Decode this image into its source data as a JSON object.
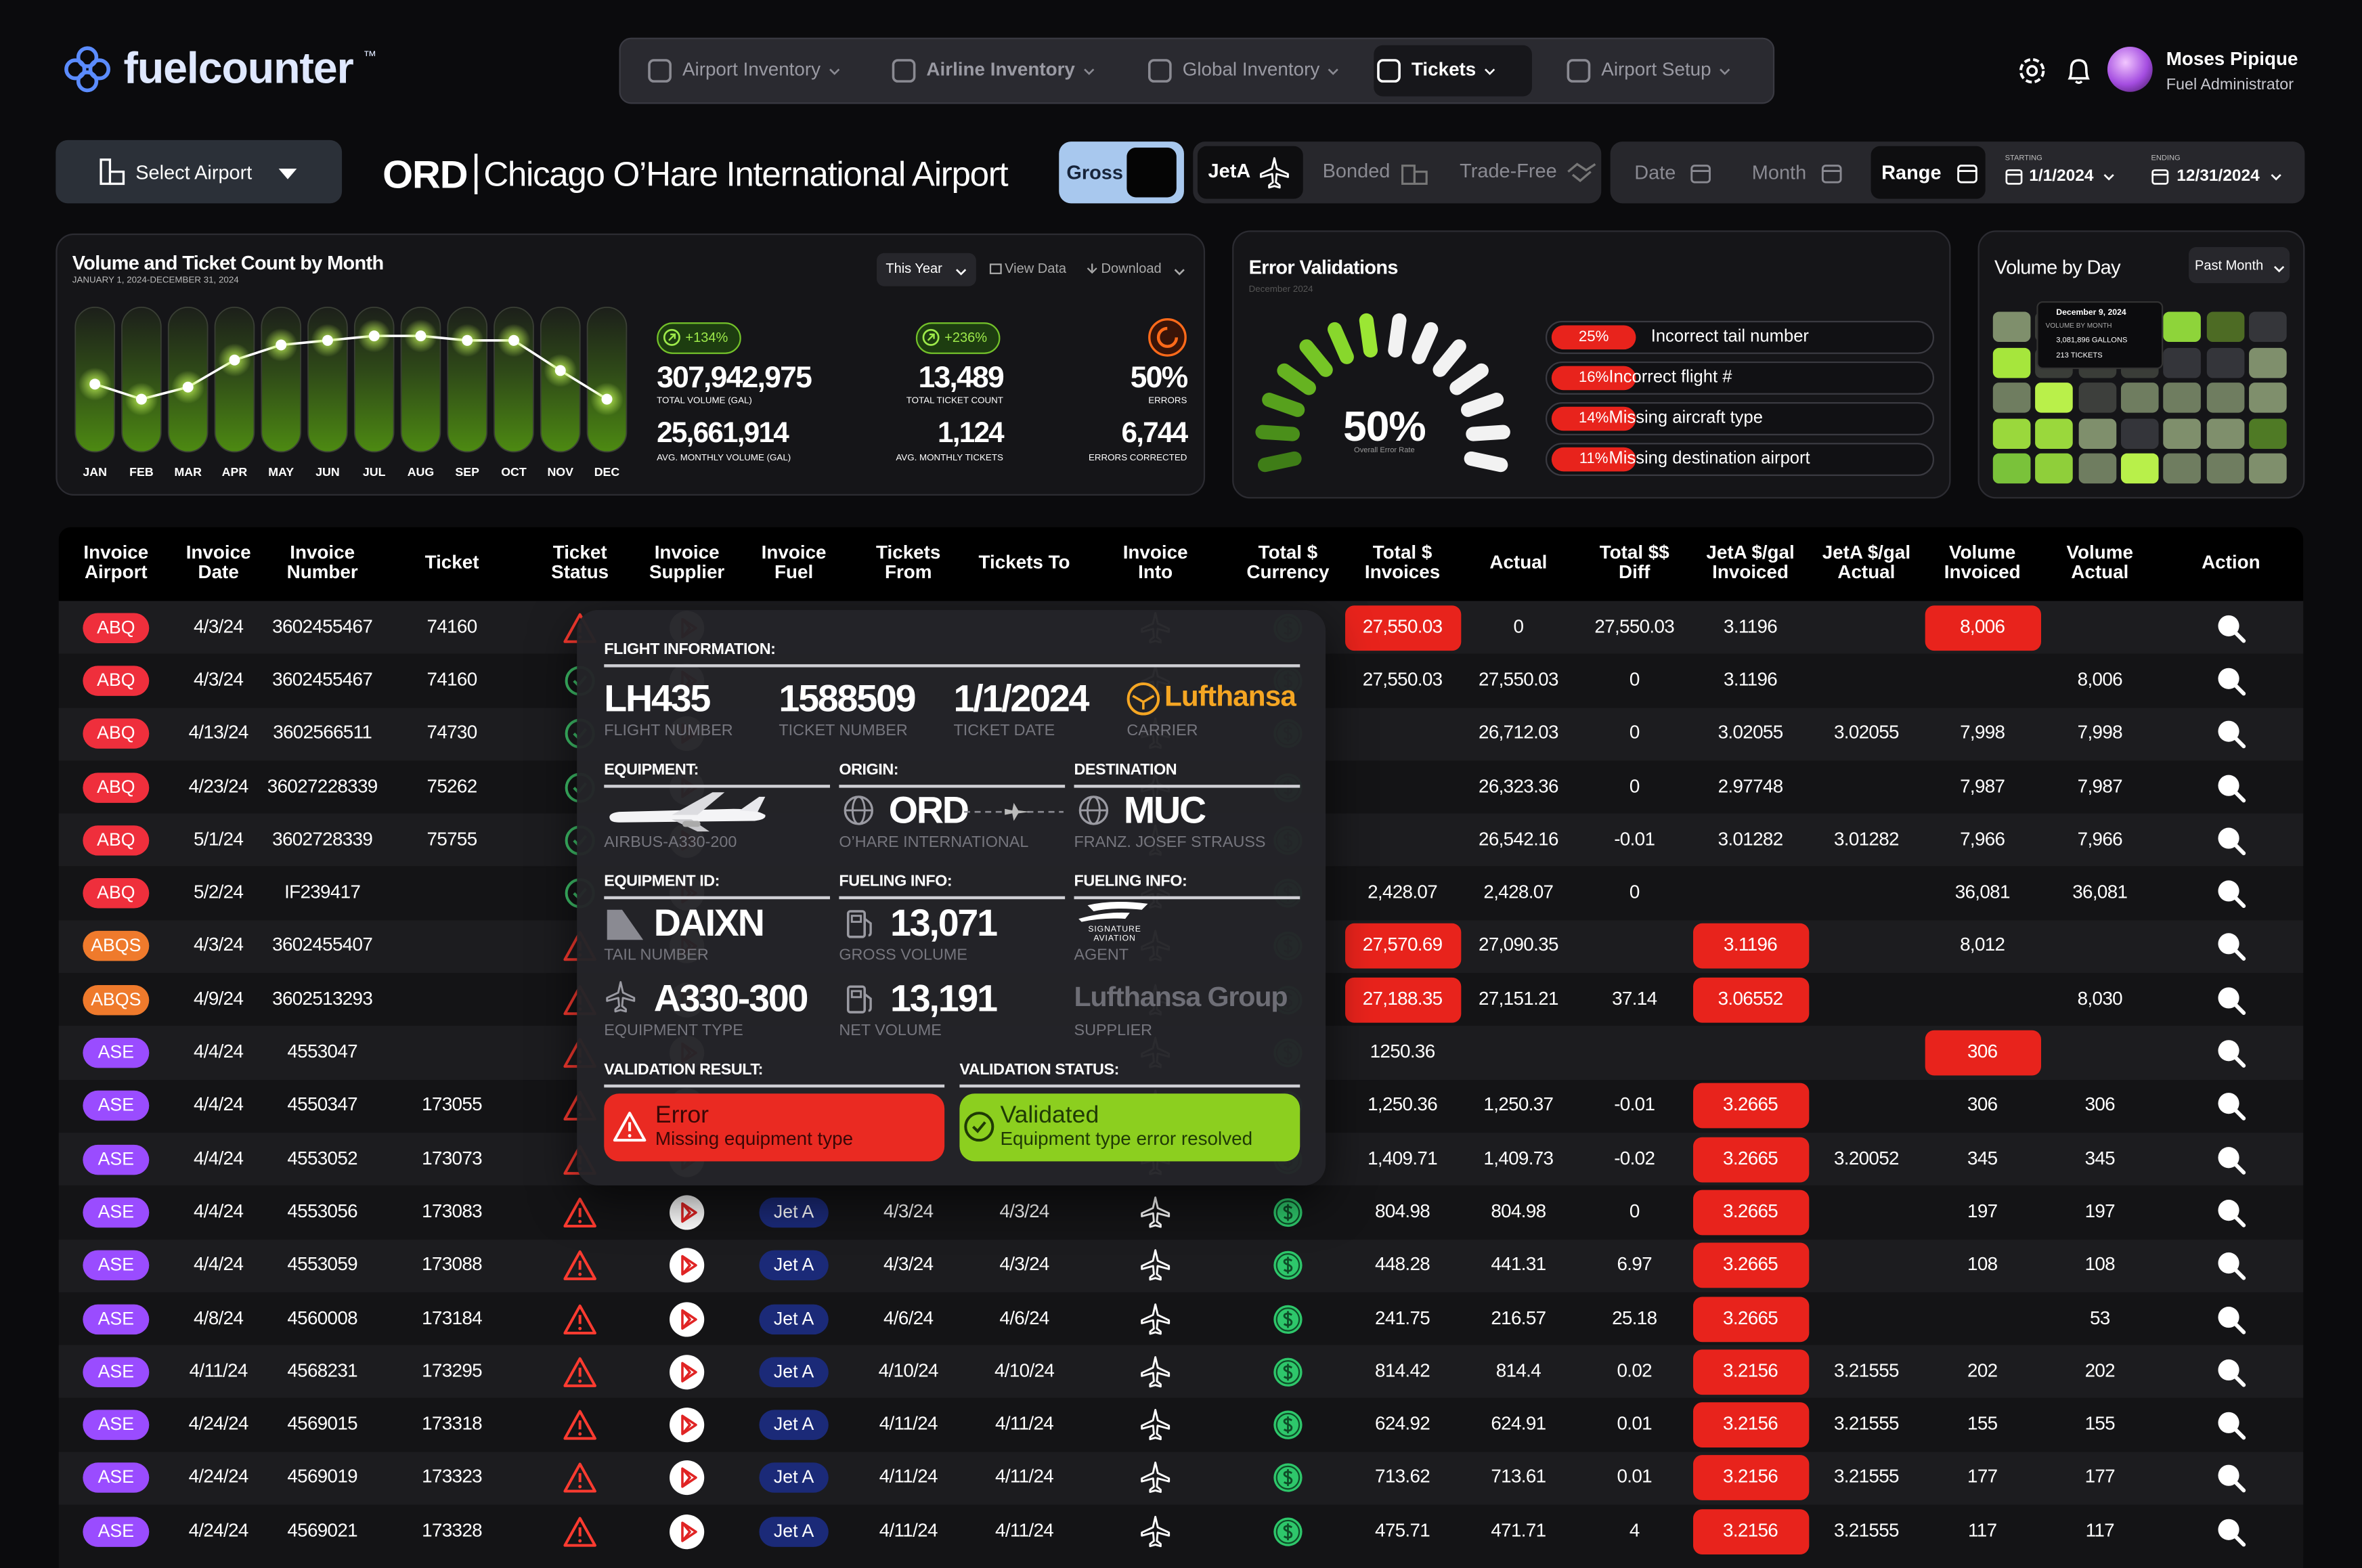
{
  "header": {
    "logo": "fuelcounter",
    "trademark": "™",
    "nav": [
      "Airport Inventory",
      "Airline Inventory",
      "Global Inventory",
      "Tickets",
      "Airport Setup"
    ],
    "user_name": "Moses Pipique",
    "user_role": "Fuel Administrator"
  },
  "toolbar": {
    "select_airport": "Select Airport",
    "airport_code": "ORD",
    "airport_name": "Chicago O’Hare International Airport",
    "gross": "Gross",
    "fuel_types": [
      "JetA",
      "Bonded",
      "Trade-Free"
    ],
    "date_modes": [
      "Date",
      "Month",
      "Range"
    ],
    "starting_label": "STARTING",
    "start_date": "1/1/2024",
    "ending_label": "ENDING",
    "end_date": "12/31/2024"
  },
  "volume_panel": {
    "title": "Volume and Ticket Count by Month",
    "subtitle": "JANUARY 1, 2024-DECEMBER 31, 2024",
    "period": "This Year",
    "view_data": "View Data",
    "download": "Download",
    "stats": [
      {
        "change": "+134%",
        "value": "307,942,975",
        "label": "TOTAL VOLUME (GAL)",
        "sub_value": "25,661,914",
        "sub_label": "AVG. MONTHLY VOLUME (GAL)"
      },
      {
        "change": "+236%",
        "value": "13,489",
        "label": "TOTAL TICKET COUNT",
        "sub_value": "1,124",
        "sub_label": "AVG. MONTHLY TICKETS"
      },
      {
        "value": "50%",
        "label": "ERRORS",
        "sub_value": "6,744",
        "sub_label": "ERRORS CORRECTED"
      }
    ]
  },
  "volume_chart": {
    "type": "line",
    "categories": [
      "JAN",
      "FEB",
      "MAR",
      "APR",
      "MAY",
      "JUN",
      "JUL",
      "AUG",
      "SEP",
      "OCT",
      "NOV",
      "DEC"
    ],
    "values": [
      45,
      35,
      43,
      61,
      71,
      74,
      77,
      77,
      74,
      74,
      54,
      35
    ],
    "ylim": [
      0,
      100
    ],
    "color": "#ffffff"
  },
  "error_panel": {
    "title": "Error Validations",
    "subtitle": "December 2024",
    "rate": "50%",
    "rate_label": "Overall Error Rate",
    "items": [
      {
        "percent": "25%",
        "label": "Incorrect tail number"
      },
      {
        "percent": "16%",
        "label": "Incorrect flight #"
      },
      {
        "percent": "14%",
        "label": "Missing aircraft type"
      },
      {
        "percent": "11%",
        "label": "Missing destination airport"
      }
    ]
  },
  "day_panel": {
    "title": "Volume by Day",
    "period": "Past Month",
    "tooltip": {
      "date": "December 9, 2024",
      "title": "VOLUME BY MONTH",
      "volume": "3,081,896 GALLONS",
      "tickets": "213 TICKETS"
    },
    "cells": [
      "#7f8f6c",
      "#3a3d38",
      "#3a3d38",
      "#3a3d38",
      "#8ed43a",
      "#4d6b24",
      "#35363a",
      "#a6e63c",
      "#3a3d38",
      "#3a3d38",
      "#3a3d38",
      "#34353a",
      "#34353a",
      "#7f8f6c",
      "#6f7d60",
      "#b9f04a",
      "#3d3f3c",
      "#6f7d60",
      "#6f7d60",
      "#6f7d60",
      "#7f8f6c",
      "#9ad83c",
      "#9ad83c",
      "#7f8f6c",
      "#34353a",
      "#7f8f6c",
      "#7f8f6c",
      "#4f7a25",
      "#7ac23a",
      "#8fcf3a",
      "#6f7d60",
      "#b8f04a",
      "#6f7d60",
      "#6f7d60",
      "#7f8f6c"
    ]
  },
  "table": {
    "headers": [
      "Invoice Airport",
      "Invoice Date",
      "Invoice Number",
      "Ticket",
      "Ticket Status",
      "Invoice Supplier",
      "Invoice Fuel",
      "Tickets From",
      "Tickets To",
      "Invoice Into",
      "Total $ Currency",
      "Total $ Invoices",
      "Actual",
      "Total $$ Diff",
      "JetA $/gal Invoiced",
      "JetA $/gal Actual",
      "Volume Invoiced",
      "Volume Actual",
      "Action"
    ],
    "airport_colors": {
      "ABQ": "#ef2f3c",
      "ABQS": "#ef7a2c",
      "ASE": "#9a4cff"
    },
    "rows": [
      {
        "airport": "ABQ",
        "date": "4/3/24",
        "invoice": "3602455467",
        "ticket": "74160",
        "ok": false,
        "total": "27,550.03",
        "actual": "0",
        "diff": "27,550.03",
        "jeta_invoiced": "3.1196",
        "volume_invoiced": "8,006",
        "red": [
          "total",
          "volume_invoiced"
        ]
      },
      {
        "airport": "ABQ",
        "date": "4/3/24",
        "invoice": "3602455467",
        "ticket": "74160",
        "ok": true,
        "total": "27,550.03",
        "actual": "27,550.03",
        "diff": "0",
        "jeta_invoiced": "3.1196",
        "volume_actual": "8,006",
        "red": []
      },
      {
        "airport": "ABQ",
        "date": "4/13/24",
        "invoice": "3602566511",
        "ticket": "74730",
        "ok": true,
        "actual": "26,712.03",
        "diff": "0",
        "jeta_invoiced": "3.02055",
        "jeta_actual": "3.02055",
        "volume_invoiced": "7,998",
        "volume_actual": "7,998",
        "red": []
      },
      {
        "airport": "ABQ",
        "date": "4/23/24",
        "invoice": "36027228339",
        "ticket": "75262",
        "ok": true,
        "actual": "26,323.36",
        "diff": "0",
        "jeta_invoiced": "2.97748",
        "volume_invoiced": "7,987",
        "volume_actual": "7,987",
        "red": []
      },
      {
        "airport": "ABQ",
        "date": "5/1/24",
        "invoice": "3602728339",
        "ticket": "75755",
        "ok": true,
        "actual": "26,542.16",
        "diff": "-0.01",
        "jeta_invoiced": "3.01282",
        "jeta_actual": "3.01282",
        "volume_invoiced": "7,966",
        "volume_actual": "7,966",
        "red": []
      },
      {
        "airport": "ABQ",
        "date": "5/2/24",
        "invoice": "IF239417",
        "ok": true,
        "total": "2,428.07",
        "actual": "2,428.07",
        "diff": "0",
        "volume_invoiced": "36,081",
        "volume_actual": "36,081",
        "red": []
      },
      {
        "airport": "ABQS",
        "date": "4/3/24",
        "invoice": "3602455407",
        "ok": false,
        "total": "27,570.69",
        "actual": "27,090.35",
        "jeta_invoiced": "3.1196",
        "volume_invoiced": "8,012",
        "red": [
          "total",
          "jeta_invoiced"
        ]
      },
      {
        "airport": "ABQS",
        "date": "4/9/24",
        "invoice": "3602513293",
        "ok": false,
        "total": "27,188.35",
        "actual": "27,151.21",
        "diff": "37.14",
        "jeta_invoiced": "3.06552",
        "volume_actual": "8,030",
        "red": [
          "total",
          "jeta_invoiced"
        ]
      },
      {
        "airport": "ASE",
        "date": "4/4/24",
        "invoice": "4553047",
        "ok": false,
        "total": "1250.36",
        "volume_invoiced": "306",
        "red": [
          "volume_invoiced"
        ]
      },
      {
        "airport": "ASE",
        "date": "4/4/24",
        "invoice": "4550347",
        "ticket": "173055",
        "ok": false,
        "total": "1,250.36",
        "actual": "1,250.37",
        "diff": "-0.01",
        "jeta_invoiced": "3.2665",
        "volume_invoiced": "306",
        "volume_actual": "306",
        "red": [
          "jeta_invoiced"
        ]
      },
      {
        "airport": "ASE",
        "date": "4/4/24",
        "invoice": "4553052",
        "ticket": "173073",
        "ok": false,
        "total": "1,409.71",
        "actual": "1,409.73",
        "diff": "-0.02",
        "jeta_invoiced": "3.2665",
        "jeta_actual": "3.20052",
        "volume_invoiced": "345",
        "volume_actual": "345",
        "red": [
          "jeta_invoiced"
        ]
      },
      {
        "airport": "ASE",
        "date": "4/4/24",
        "invoice": "4553056",
        "ticket": "173083",
        "ok": false,
        "fuel": "Jet A",
        "from": "4/3/24",
        "to": "4/3/24",
        "total": "804.98",
        "actual": "804.98",
        "diff": "0",
        "jeta_invoiced": "3.2665",
        "volume_invoiced": "197",
        "volume_actual": "197",
        "red": [
          "jeta_invoiced"
        ]
      },
      {
        "airport": "ASE",
        "date": "4/4/24",
        "invoice": "4553059",
        "ticket": "173088",
        "ok": false,
        "fuel": "Jet A",
        "from": "4/3/24",
        "to": "4/3/24",
        "total": "448.28",
        "actual": "441.31",
        "diff": "6.97",
        "jeta_invoiced": "3.2665",
        "volume_invoiced": "108",
        "volume_actual": "108",
        "red": [
          "jeta_invoiced"
        ]
      },
      {
        "airport": "ASE",
        "date": "4/8/24",
        "invoice": "4560008",
        "ticket": "173184",
        "ok": false,
        "fuel": "Jet A",
        "from": "4/6/24",
        "to": "4/6/24",
        "total": "241.75",
        "actual": "216.57",
        "diff": "25.18",
        "jeta_invoiced": "3.2665",
        "volume_actual": "53",
        "red": [
          "jeta_invoiced"
        ]
      },
      {
        "airport": "ASE",
        "date": "4/11/24",
        "invoice": "4568231",
        "ticket": "173295",
        "ok": false,
        "fuel": "Jet A",
        "from": "4/10/24",
        "to": "4/10/24",
        "total": "814.42",
        "actual": "814.4",
        "diff": "0.02",
        "jeta_invoiced": "3.2156",
        "jeta_actual": "3.21555",
        "volume_invoiced": "202",
        "volume_actual": "202",
        "red": [
          "jeta_invoiced"
        ]
      },
      {
        "airport": "ASE",
        "date": "4/24/24",
        "invoice": "4569015",
        "ticket": "173318",
        "ok": false,
        "fuel": "Jet A",
        "from": "4/11/24",
        "to": "4/11/24",
        "total": "624.92",
        "actual": "624.91",
        "diff": "0.01",
        "jeta_invoiced": "3.2156",
        "jeta_actual": "3.21555",
        "volume_invoiced": "155",
        "volume_actual": "155",
        "red": [
          "jeta_invoiced"
        ]
      },
      {
        "airport": "ASE",
        "date": "4/24/24",
        "invoice": "4569019",
        "ticket": "173323",
        "ok": false,
        "fuel": "Jet A",
        "from": "4/11/24",
        "to": "4/11/24",
        "total": "713.62",
        "actual": "713.61",
        "diff": "0.01",
        "jeta_invoiced": "3.2156",
        "jeta_actual": "3.21555",
        "volume_invoiced": "177",
        "volume_actual": "177",
        "red": [
          "jeta_invoiced"
        ]
      },
      {
        "airport": "ASE",
        "date": "4/24/24",
        "invoice": "4569021",
        "ticket": "173328",
        "ok": false,
        "fuel": "Jet A",
        "from": "4/11/24",
        "to": "4/11/24",
        "total": "475.71",
        "actual": "471.71",
        "diff": "4",
        "jeta_invoiced": "3.2156",
        "jeta_actual": "3.21555",
        "volume_invoiced": "117",
        "volume_actual": "117",
        "red": [
          "jeta_invoiced"
        ]
      }
    ]
  },
  "popup": {
    "heading": "FLIGHT INFORMATION:",
    "flight": {
      "value": "LH435",
      "label": "FLIGHT NUMBER"
    },
    "ticket": {
      "value": "1588509",
      "label": "TICKET NUMBER"
    },
    "date": {
      "value": "1/1/2024",
      "label": "TICKET DATE"
    },
    "carrier": {
      "value": "Lufthansa",
      "label": "CARRIER"
    },
    "equipment": {
      "heading": "EQUIPMENT:",
      "label": "AIRBUS-A330-200"
    },
    "origin": {
      "heading": "ORIGIN:",
      "value": "ORD",
      "label": "O’HARE INTERNATIONAL"
    },
    "destination": {
      "heading": "DESTINATION",
      "value": "MUC",
      "label": "FRANZ. JOSEF STRAUSS"
    },
    "equipment_id": {
      "heading": "EQUIPMENT ID:",
      "value": "DAIXN",
      "label": "TAIL NUMBER"
    },
    "gross": {
      "heading": "FUELING INFO:",
      "value": "13,071",
      "label": "GROSS VOLUME"
    },
    "agent": {
      "heading": "FUELING INFO:",
      "value": "SIGNATURE AVIATION",
      "label": "AGENT"
    },
    "equipment_type": {
      "value": "A330-300",
      "label": "EQUIPMENT TYPE"
    },
    "net": {
      "value": "13,191",
      "label": "NET VOLUME"
    },
    "supplier": {
      "value": "Lufthansa Group",
      "label": "SUPPLIER"
    },
    "result": {
      "heading": "VALIDATION RESULT:",
      "value": "Error",
      "detail": "Missing equipment type"
    },
    "status": {
      "heading": "VALIDATION STATUS:",
      "value": "Validated",
      "detail": "Equipment type error resolved"
    }
  }
}
